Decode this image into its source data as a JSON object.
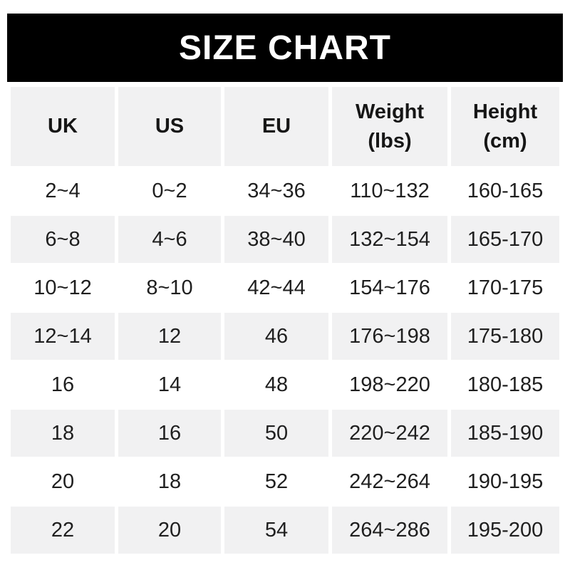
{
  "title": "SIZE CHART",
  "chart_data": {
    "type": "table",
    "title": "SIZE CHART",
    "columns": [
      {
        "label": "UK",
        "lines": [
          "UK"
        ]
      },
      {
        "label": "US",
        "lines": [
          "US"
        ]
      },
      {
        "label": "EU",
        "lines": [
          "EU"
        ]
      },
      {
        "label": "Weight (lbs)",
        "lines": [
          "Weight",
          "(lbs)"
        ]
      },
      {
        "label": "Height (cm)",
        "lines": [
          "Height",
          "(cm)"
        ]
      }
    ],
    "rows": [
      [
        "2~4",
        "0~2",
        "34~36",
        "110~132",
        "160-165"
      ],
      [
        "6~8",
        "4~6",
        "38~40",
        "132~154",
        "165-170"
      ],
      [
        "10~12",
        "8~10",
        "42~44",
        "154~176",
        "170-175"
      ],
      [
        "12~14",
        "12",
        "46",
        "176~198",
        "175-180"
      ],
      [
        "16",
        "14",
        "48",
        "198~220",
        "180-185"
      ],
      [
        "18",
        "16",
        "50",
        "220~242",
        "185-190"
      ],
      [
        "20",
        "18",
        "52",
        "242~264",
        "190-195"
      ],
      [
        "22",
        "20",
        "54",
        "264~286",
        "195-200"
      ]
    ],
    "layout": {
      "row_striping": [
        "white",
        "gray"
      ],
      "grid": "off",
      "column_gap_color": "#ffffff"
    }
  },
  "colors": {
    "page_bg": "#ffffff",
    "title_bar_bg": "#000000",
    "title_text": "#ffffff",
    "header_row_bg": "#f1f1f2",
    "alt_row_bg": "#f1f1f2",
    "text": "#1f1f1f"
  }
}
